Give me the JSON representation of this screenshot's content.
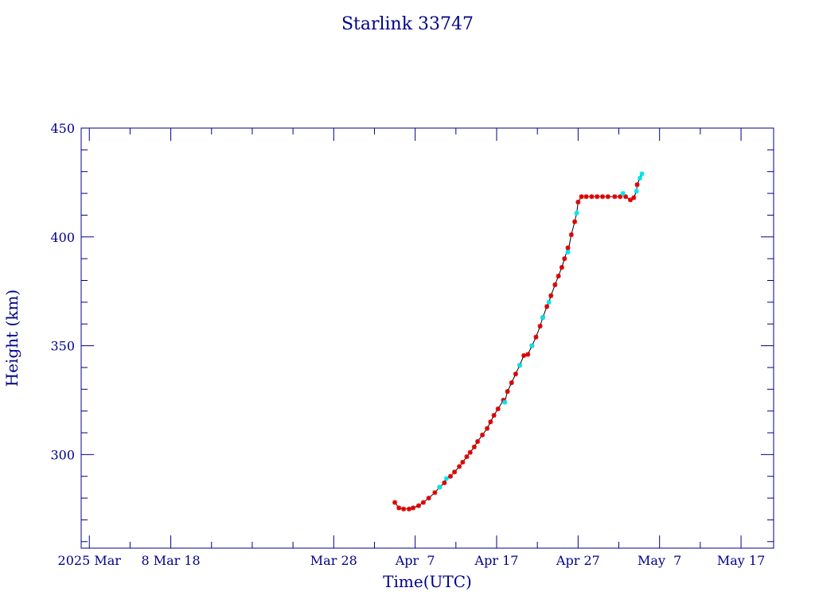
{
  "chart_data": {
    "type": "scatter",
    "title": "Starlink 33747",
    "xlabel": "Time(UTC)",
    "ylabel": "Height (km)",
    "xlim": [
      "2025-02-25",
      "2025-05-21"
    ],
    "ylim": [
      257,
      450
    ],
    "x_ticks": [
      {
        "date": "2025-02-26",
        "label": "2025 Mar"
      },
      {
        "date": "2025-03-08",
        "label": "8 Mar 18"
      },
      {
        "date": "2025-03-28",
        "label": "Mar 28"
      },
      {
        "date": "2025-04-07",
        "label": "Apr  7"
      },
      {
        "date": "2025-04-17",
        "label": "Apr 17"
      },
      {
        "date": "2025-04-27",
        "label": "Apr 27"
      },
      {
        "date": "2025-05-07",
        "label": "May  7"
      },
      {
        "date": "2025-05-17",
        "label": "May 17"
      }
    ],
    "y_ticks": [
      300,
      350,
      400,
      450
    ],
    "colors": {
      "axis": "#00008b",
      "line": "#000000",
      "primary": "#dd0000",
      "secondary": "#00e5ee"
    },
    "series": [
      {
        "points": [
          [
            "2025-04-04T12:00",
            278
          ],
          [
            "2025-04-05T00:00",
            275.5
          ],
          [
            "2025-04-05T14:00",
            275
          ],
          [
            "2025-04-06T06:00",
            275
          ],
          [
            "2025-04-06T18:00",
            275.5
          ],
          [
            "2025-04-07T10:00",
            276.5
          ],
          [
            "2025-04-08T00:00",
            278
          ],
          [
            "2025-04-08T16:00",
            280
          ],
          [
            "2025-04-09T10:00",
            282.5
          ],
          [
            "2025-04-10T00:00",
            285
          ],
          [
            "2025-04-10T14:00",
            287
          ],
          [
            "2025-04-11T08:00",
            290
          ],
          [
            "2025-04-11T20:00",
            292
          ],
          [
            "2025-04-12T10:00",
            294.5
          ],
          [
            "2025-04-12T20:00",
            296.5
          ],
          [
            "2025-04-13T08:00",
            299
          ],
          [
            "2025-04-13T18:00",
            301
          ],
          [
            "2025-04-14T06:00",
            303.5
          ],
          [
            "2025-04-14T16:00",
            306
          ],
          [
            "2025-04-15T06:00",
            309
          ],
          [
            "2025-04-15T20:00",
            312
          ],
          [
            "2025-04-16T06:00",
            315
          ],
          [
            "2025-04-16T16:00",
            318
          ],
          [
            "2025-04-17T04:00",
            321
          ],
          [
            "2025-04-17T20:00",
            325
          ],
          [
            "2025-04-18T08:00",
            329
          ],
          [
            "2025-04-18T20:00",
            333
          ],
          [
            "2025-04-19T08:00",
            337
          ],
          [
            "2025-04-19T20:00",
            341
          ],
          [
            "2025-04-20T08:00",
            345.5
          ],
          [
            "2025-04-20T20:00",
            346
          ],
          [
            "2025-04-21T08:00",
            350
          ],
          [
            "2025-04-21T20:00",
            354
          ],
          [
            "2025-04-22T08:00",
            359
          ],
          [
            "2025-04-22T16:00",
            363
          ],
          [
            "2025-04-23T04:00",
            368
          ],
          [
            "2025-04-23T16:00",
            373
          ],
          [
            "2025-04-24T04:00",
            378
          ],
          [
            "2025-04-24T14:00",
            382
          ],
          [
            "2025-04-25T00:00",
            386
          ],
          [
            "2025-04-25T08:00",
            390
          ],
          [
            "2025-04-25T18:00",
            395
          ],
          [
            "2025-04-26T04:00",
            401
          ],
          [
            "2025-04-26T14:00",
            407
          ],
          [
            "2025-04-27T00:00",
            416
          ],
          [
            "2025-04-27T10:00",
            418.5
          ],
          [
            "2025-04-28T00:00",
            418.5
          ],
          [
            "2025-04-28T16:00",
            418.5
          ],
          [
            "2025-04-29T08:00",
            418.5
          ],
          [
            "2025-04-30T00:00",
            418.5
          ],
          [
            "2025-04-30T16:00",
            418.5
          ],
          [
            "2025-05-01T12:00",
            418.5
          ],
          [
            "2025-05-02T04:00",
            418.5
          ],
          [
            "2025-05-02T20:00",
            418.5
          ],
          [
            "2025-05-03T10:00",
            417
          ],
          [
            "2025-05-03T20:00",
            418
          ],
          [
            "2025-05-04T06:00",
            424
          ]
        ]
      },
      {
        "points": [
          [
            "2025-04-10T00:00",
            285
          ],
          [
            "2025-04-10T20:00",
            289
          ],
          [
            "2025-04-18T00:00",
            324
          ],
          [
            "2025-04-19T20:00",
            341
          ],
          [
            "2025-04-21T08:00",
            350
          ],
          [
            "2025-04-22T16:00",
            363
          ],
          [
            "2025-04-23T10:00",
            370
          ],
          [
            "2025-04-25T18:00",
            393
          ],
          [
            "2025-04-26T20:00",
            411
          ],
          [
            "2025-05-02T12:00",
            420
          ],
          [
            "2025-05-04T04:00",
            421
          ],
          [
            "2025-05-04T14:00",
            427
          ],
          [
            "2025-05-04T20:00",
            429
          ]
        ]
      }
    ]
  }
}
